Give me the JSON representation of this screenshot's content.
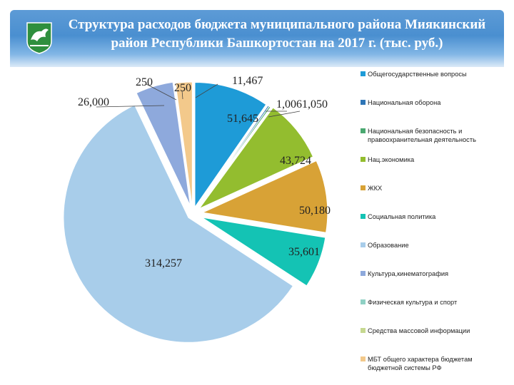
{
  "title": "Структура расходов бюджета муниципального района Миякинский район Республики Башкортостан на 2017 г. (тыс. руб.)",
  "chart_data": {
    "type": "pie",
    "series": [
      {
        "name": "Общегосударственные вопросы",
        "value": 51.645,
        "label": "51,645",
        "color": "#1e9bd7"
      },
      {
        "name": "Национальная оборона",
        "value": 1.006,
        "label": "1,006",
        "color": "#2e75b6"
      },
      {
        "name": "Национальная безопасность и правоохранительная деятельность",
        "value": 1.05,
        "label": "1,050",
        "color": "#4aa870"
      },
      {
        "name": "Нац.экономика",
        "value": 43.724,
        "label": "43,724",
        "color": "#93bd2f"
      },
      {
        "name": "ЖКХ",
        "value": 50.18,
        "label": "50,180",
        "color": "#d8a236"
      },
      {
        "name": "Социальная политика",
        "value": 35.601,
        "label": "35,601",
        "color": "#14c3b4"
      },
      {
        "name": "Образование",
        "value": 314.257,
        "label": "314,257",
        "color": "#a8cdea"
      },
      {
        "name": "Культура,кинематография",
        "value": 26.0,
        "label": "26,000",
        "color": "#8ea9dc"
      },
      {
        "name": "Физическая культура и спорт",
        "value": 0.25,
        "label": "250",
        "color": "#8fd0c4"
      },
      {
        "name": "Средства массовой информации",
        "value": 0.25,
        "label": "250",
        "color": "#c6d890"
      },
      {
        "name": "МБТ общего характера бюджетам бюджетной системы РФ",
        "value": 11.467,
        "label": "11,467",
        "color": "#f3c98b"
      }
    ],
    "legend_position": "right"
  }
}
